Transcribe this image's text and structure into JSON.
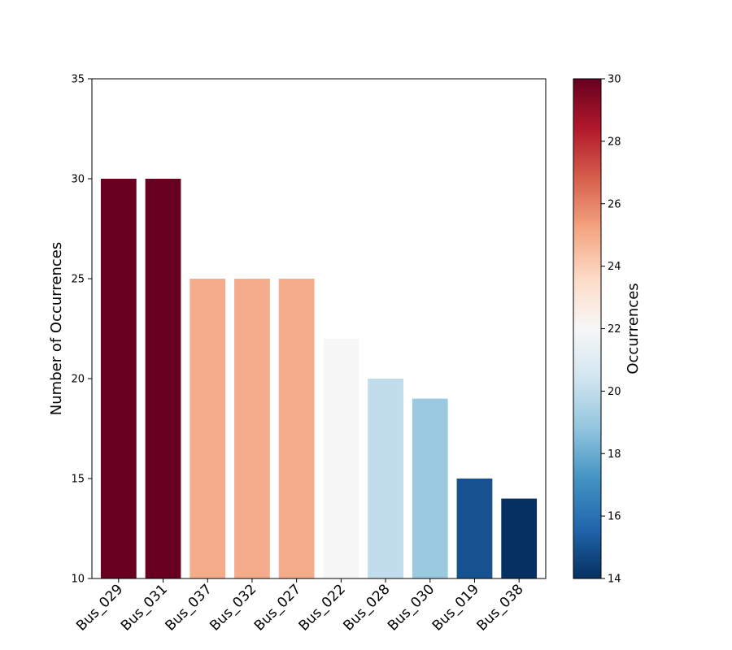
{
  "chart_data": {
    "type": "bar",
    "categories": [
      "Bus_029",
      "Bus_031",
      "Bus_037",
      "Bus_032",
      "Bus_027",
      "Bus_022",
      "Bus_028",
      "Bus_030",
      "Bus_019",
      "Bus_038"
    ],
    "values": [
      30,
      30,
      25,
      25,
      25,
      22,
      20,
      19,
      15,
      14
    ],
    "ylabel": "Number of Occurrences",
    "ylim": [
      10,
      35
    ],
    "yticks": [
      10,
      15,
      20,
      25,
      30,
      35
    ],
    "grid": false,
    "colormap": "RdBu_r",
    "colorbar": {
      "label": "Occurrences",
      "range": [
        14,
        30
      ],
      "ticks": [
        14,
        16,
        18,
        20,
        22,
        24,
        26,
        28,
        30
      ]
    }
  }
}
